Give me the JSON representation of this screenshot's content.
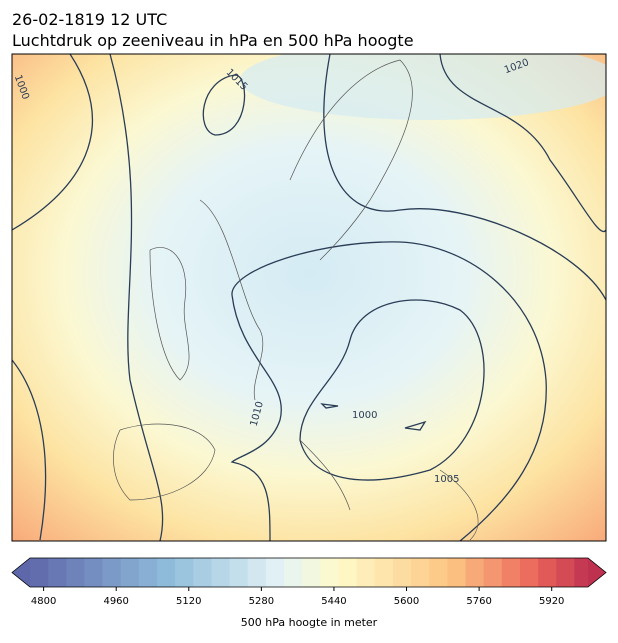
{
  "header": {
    "date": "26-02-1819 12 UTC",
    "title": "Luchtdruk op zeeniveau in hPa en 500 hPa hoogte"
  },
  "map": {
    "contour_labels": [
      "1000",
      "1015",
      "1020",
      "1010",
      "1000",
      "1005"
    ]
  },
  "colorbar": {
    "range": [
      4770,
      6000
    ],
    "step": 40,
    "ticks": [
      4800,
      4960,
      5120,
      5280,
      5440,
      5600,
      5760,
      5920
    ],
    "label": "500 hPa hoogte in meter"
  }
}
